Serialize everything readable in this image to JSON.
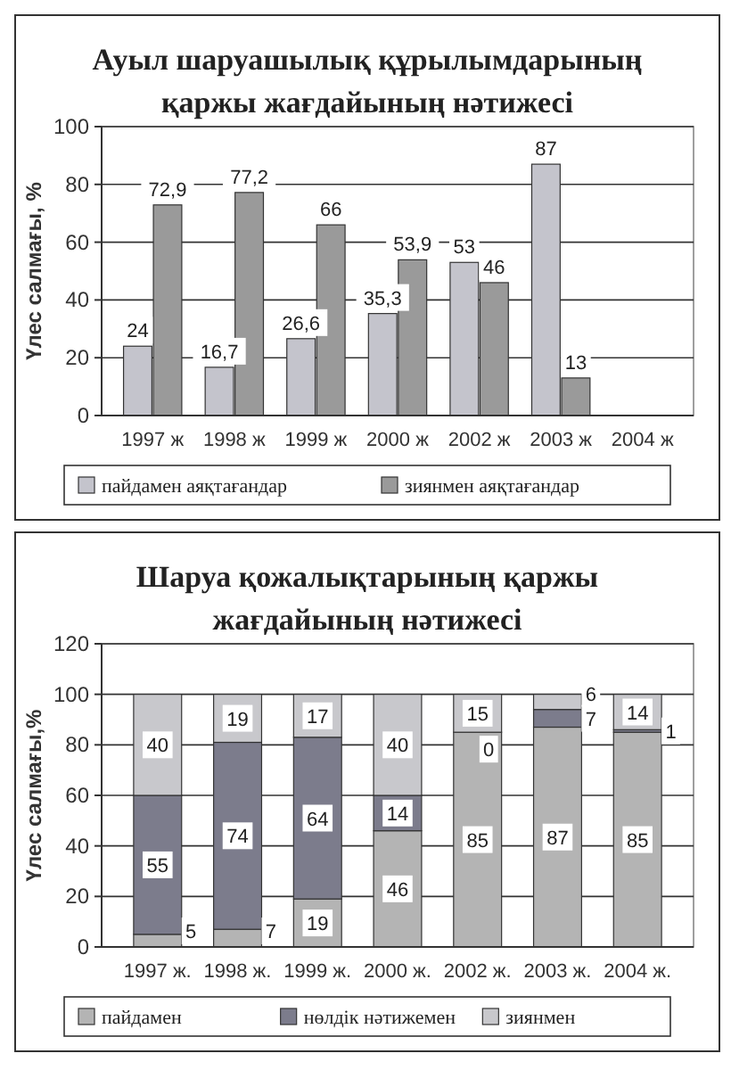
{
  "chart_data": [
    {
      "type": "bar",
      "title": "Ауыл шаруашылық құрылымдарының қаржы жағдайының нәтижесі",
      "ylabel": "Үлес салмағы, %",
      "categories": [
        "1997 ж",
        "1998 ж",
        "1999 ж",
        "2000 ж",
        "2002 ж",
        "2003 ж",
        "2004 ж"
      ],
      "ylim": [
        0,
        100
      ],
      "yticks": [
        0,
        20,
        40,
        60,
        80,
        100
      ],
      "grid": "y",
      "legend": "bottom",
      "series": [
        {
          "name": "пайдамен аяқтағандар",
          "color": "#c4c4cc",
          "values": [
            24,
            16.7,
            26.6,
            35.3,
            53,
            87,
            null
          ],
          "value_labels": [
            "24",
            "16,7",
            "26,6",
            "35,3",
            "53",
            "87",
            null
          ]
        },
        {
          "name": "зиянмен аяқтағандар",
          "color": "#9a9a9a",
          "values": [
            72.9,
            77.2,
            66,
            53.9,
            46,
            13,
            null
          ],
          "value_labels": [
            "72,9",
            "77,2",
            "66",
            "53,9",
            "46",
            "13",
            null
          ]
        }
      ]
    },
    {
      "type": "bar",
      "stacked": true,
      "title": "Шаруа қожалықтарының қаржы жағдайының нәтижесі",
      "ylabel": "Үлес салмағы,%",
      "categories": [
        "1997 ж.",
        "1998 ж.",
        "1999 ж.",
        "2000 ж.",
        "2002 ж.",
        "2003 ж.",
        "2004 ж."
      ],
      "ylim": [
        0,
        120
      ],
      "yticks": [
        0,
        20,
        40,
        60,
        80,
        100,
        120
      ],
      "grid": "y",
      "legend": "bottom",
      "data_labels": true,
      "series": [
        {
          "name": "пайдамен",
          "color": "#b4b4b4",
          "values": [
            5,
            7,
            19,
            46,
            85,
            87,
            85
          ]
        },
        {
          "name": "нөлдік нәтижемен",
          "color": "#7c7c8c",
          "values": [
            55,
            74,
            64,
            14,
            0,
            7,
            1
          ]
        },
        {
          "name": "зиянмен",
          "color": "#c8c8cc",
          "values": [
            40,
            19,
            17,
            40,
            15,
            6,
            14
          ]
        }
      ]
    }
  ]
}
